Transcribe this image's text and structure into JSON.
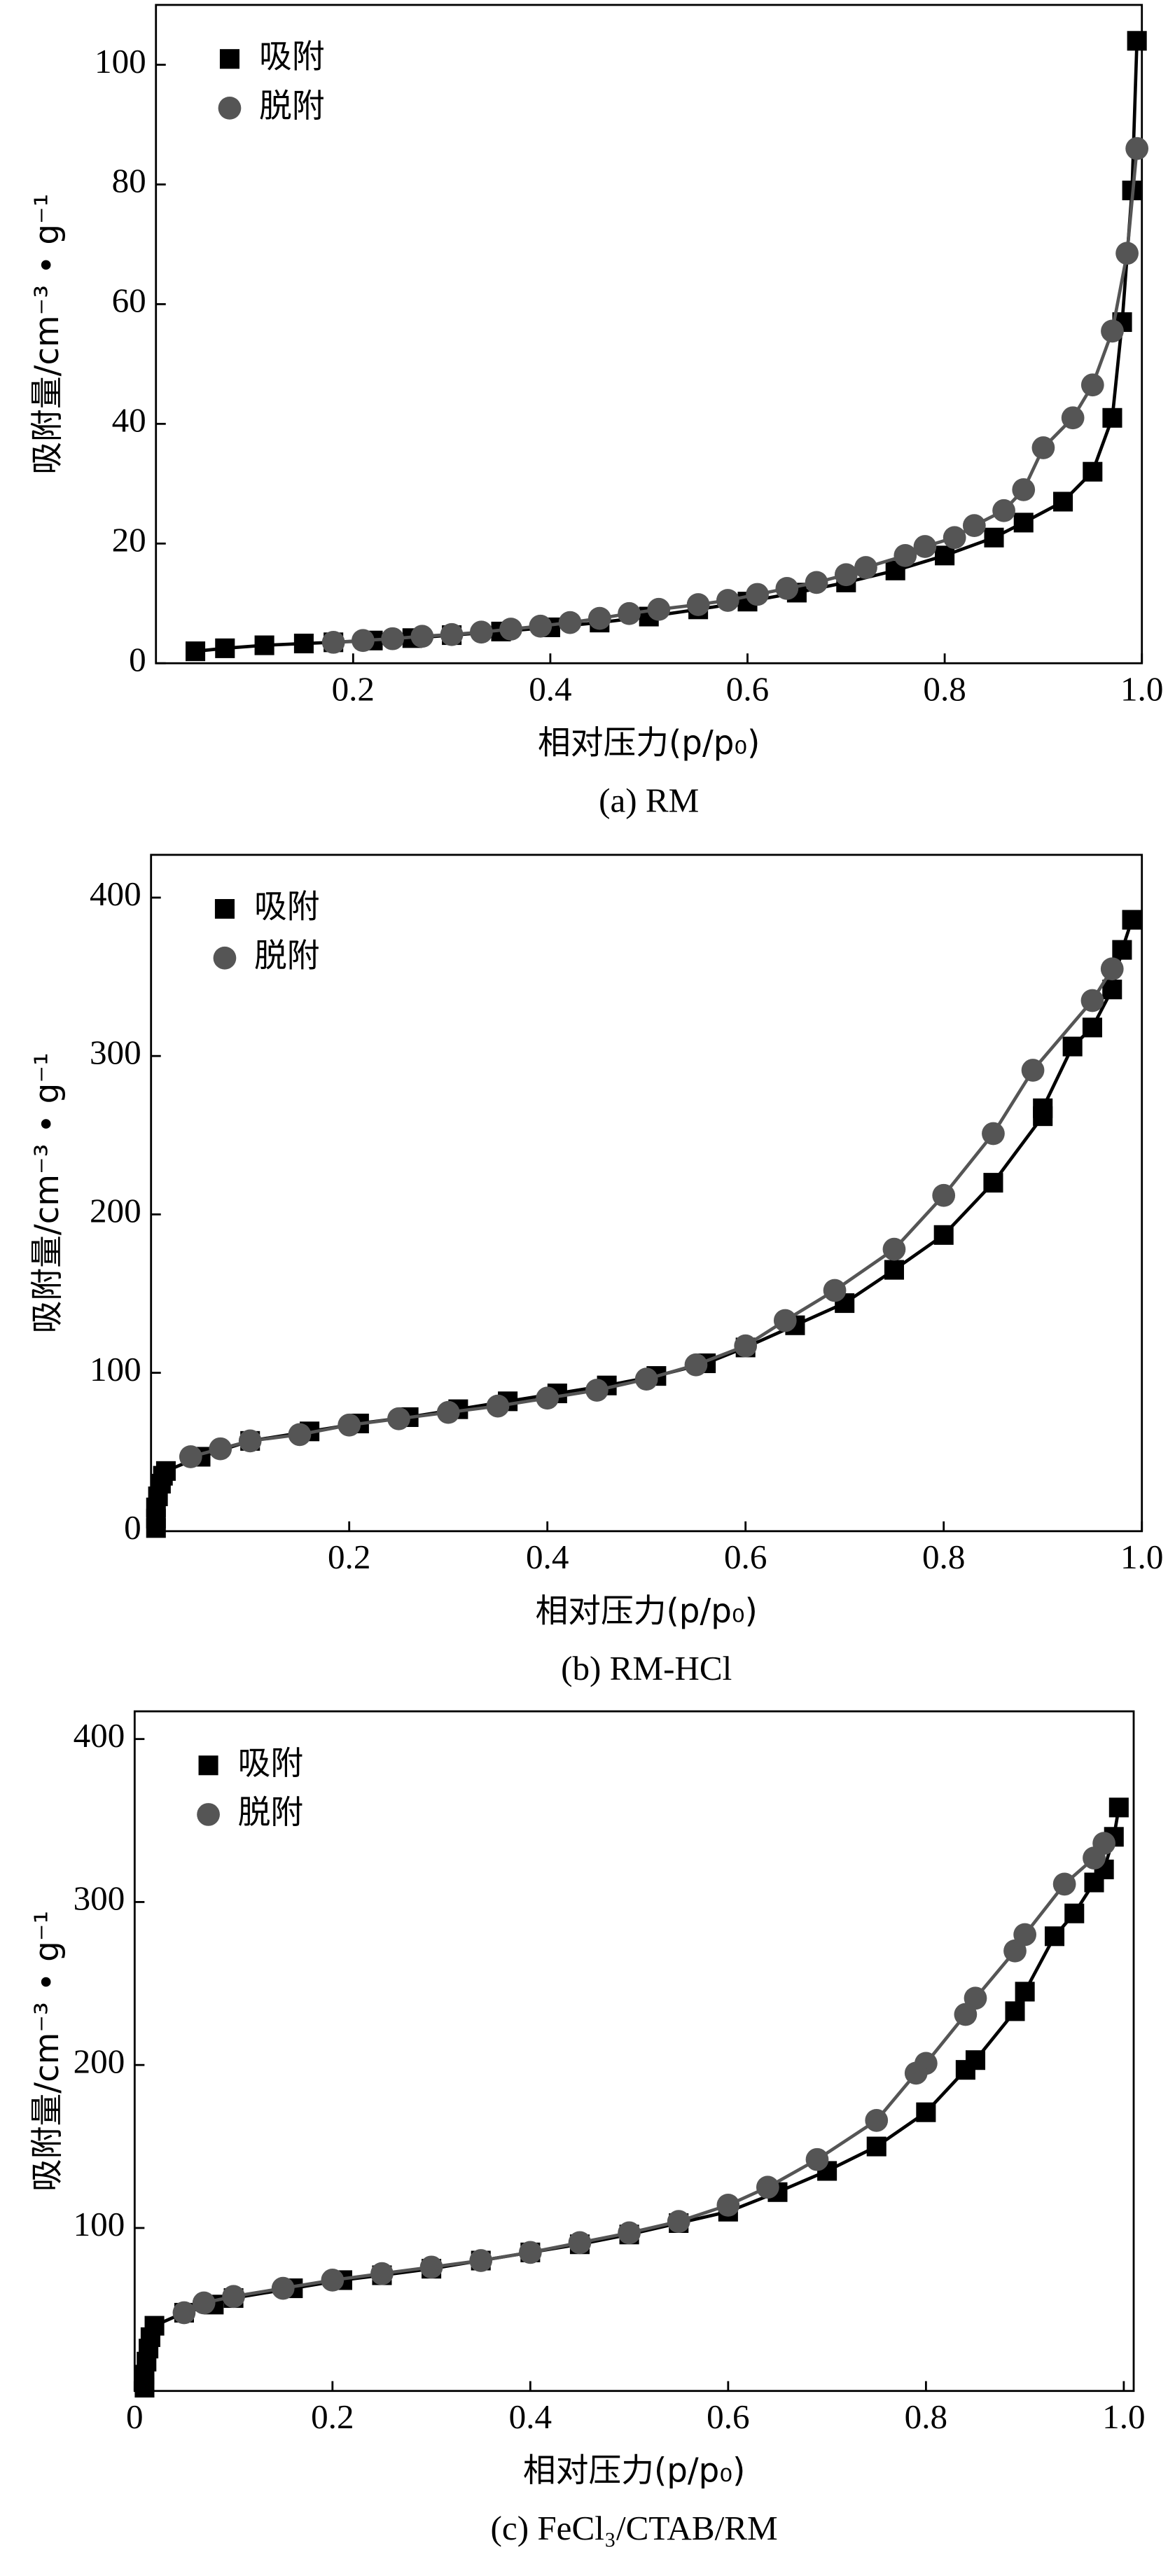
{
  "chart_data": [
    {
      "type": "line",
      "caption": "(a) RM",
      "x_label": "相对压力(p/p₀)",
      "y_label": "吸附量/cm⁻³ • g⁻¹",
      "xlim": [
        0,
        1.0
      ],
      "ylim": [
        0,
        110
      ],
      "xticks": [
        0.2,
        0.4,
        0.6,
        0.8,
        {
          "value": 1,
          "label": "1.0"
        }
      ],
      "yticks": [
        0,
        20,
        40,
        60,
        80,
        100
      ],
      "legend": "upper left",
      "series": [
        {
          "name": "吸附",
          "color": "#000000",
          "marker": "square",
          "x": [
            0.04,
            0.07,
            0.11,
            0.15,
            0.18,
            0.22,
            0.26,
            0.3,
            0.35,
            0.4,
            0.45,
            0.5,
            0.55,
            0.6,
            0.65,
            0.7,
            0.75,
            0.8,
            0.85,
            0.88,
            0.92,
            0.95,
            0.97,
            0.98,
            0.99,
            0.995
          ],
          "values": [
            2,
            2.5,
            3,
            3.3,
            3.5,
            3.8,
            4.2,
            4.7,
            5.3,
            6,
            6.8,
            7.8,
            9,
            10.3,
            11.8,
            13.5,
            15.5,
            18,
            21,
            23.5,
            27,
            32,
            41,
            57,
            79,
            104
          ]
        },
        {
          "name": "脱附",
          "color": "#555555",
          "marker": "circle",
          "x": [
            0.995,
            0.985,
            0.97,
            0.95,
            0.93,
            0.9,
            0.88,
            0.86,
            0.83,
            0.81,
            0.78,
            0.76,
            0.72,
            0.7,
            0.67,
            0.64,
            0.61,
            0.58,
            0.55,
            0.51,
            0.48,
            0.45,
            0.42,
            0.39,
            0.36,
            0.33,
            0.3,
            0.27,
            0.24,
            0.21,
            0.18
          ],
          "values": [
            86,
            68.5,
            55.5,
            46.5,
            41,
            36,
            29,
            25.5,
            23,
            21,
            19.5,
            18,
            16,
            14.8,
            13.5,
            12.5,
            11.5,
            10.5,
            9.8,
            9,
            8.3,
            7.5,
            6.8,
            6.2,
            5.7,
            5.2,
            4.8,
            4.5,
            4.1,
            3.8,
            3.5
          ]
        }
      ]
    },
    {
      "type": "line",
      "caption": "(b) RM-HCl",
      "x_label": "相对压力(p/p₀)",
      "y_label": "吸附量/cm⁻³ • g⁻¹",
      "xlim": [
        0,
        1.0
      ],
      "ylim": [
        0,
        427
      ],
      "xticks": [
        0.2,
        0.4,
        0.6,
        0.8,
        {
          "value": 1,
          "label": "1.0"
        }
      ],
      "yticks": [
        0,
        100,
        200,
        300,
        400
      ],
      "legend": "upper left",
      "series": [
        {
          "name": "吸附",
          "color": "#000000",
          "marker": "square",
          "x": [
            0.005,
            0.005,
            0.005,
            0.007,
            0.01,
            0.012,
            0.015,
            0.05,
            0.1,
            0.16,
            0.21,
            0.26,
            0.31,
            0.36,
            0.41,
            0.46,
            0.51,
            0.56,
            0.6,
            0.65,
            0.7,
            0.75,
            0.8,
            0.85,
            0.9,
            0.9,
            0.93,
            0.95,
            0.97,
            0.98,
            0.99
          ],
          "values": [
            2,
            8,
            15,
            22,
            30,
            35,
            38,
            47,
            57,
            63,
            68,
            72,
            77,
            82,
            87,
            92,
            98,
            106,
            116,
            130,
            144,
            165,
            187,
            220,
            262,
            267,
            306,
            318,
            342,
            367,
            386
          ]
        },
        {
          "name": "脱附",
          "color": "#555555",
          "marker": "circle",
          "x": [
            0.97,
            0.95,
            0.89,
            0.85,
            0.8,
            0.75,
            0.69,
            0.64,
            0.6,
            0.55,
            0.5,
            0.45,
            0.4,
            0.35,
            0.3,
            0.25,
            0.2,
            0.15,
            0.1,
            0.07,
            0.04
          ],
          "values": [
            355,
            335,
            291,
            251,
            212,
            178,
            152,
            133,
            117,
            105,
            96,
            89,
            84,
            79,
            75,
            71,
            67,
            61,
            57,
            52,
            47
          ]
        }
      ]
    },
    {
      "type": "line",
      "caption": "(c) FeCl₃/CTAB/RM",
      "x_label": "相对压力(p/p₀)",
      "y_label": "吸附量/cm⁻³ • g⁻¹",
      "xlim": [
        0,
        1.01
      ],
      "ylim": [
        0,
        417
      ],
      "xticks": [
        0,
        0.2,
        0.4,
        0.6,
        0.8,
        {
          "value": 1,
          "label": "1.0"
        }
      ],
      "yticks": [
        100,
        200,
        300,
        400
      ],
      "legend": "upper left",
      "series": [
        {
          "name": "吸附",
          "color": "#000000",
          "marker": "square",
          "x": [
            0.01,
            0.01,
            0.012,
            0.014,
            0.016,
            0.02,
            0.05,
            0.08,
            0.1,
            0.16,
            0.21,
            0.25,
            0.3,
            0.35,
            0.4,
            0.45,
            0.5,
            0.55,
            0.6,
            0.65,
            0.7,
            0.75,
            0.8,
            0.84,
            0.85,
            0.89,
            0.9,
            0.93,
            0.95,
            0.97,
            0.98,
            0.99,
            0.995
          ],
          "values": [
            2,
            10,
            18,
            26,
            33,
            40,
            48,
            53,
            57,
            63,
            68,
            71,
            75,
            80,
            85,
            90,
            96,
            103,
            110,
            122,
            135,
            150,
            171,
            197,
            203,
            233,
            245,
            279,
            293,
            312,
            320,
            340,
            358
          ]
        },
        {
          "name": "脱附",
          "color": "#555555",
          "marker": "circle",
          "x": [
            0.98,
            0.97,
            0.94,
            0.9,
            0.89,
            0.85,
            0.84,
            0.8,
            0.79,
            0.75,
            0.69,
            0.64,
            0.6,
            0.55,
            0.5,
            0.45,
            0.4,
            0.35,
            0.3,
            0.25,
            0.2,
            0.15,
            0.1,
            0.07,
            0.05
          ],
          "values": [
            336,
            327,
            311,
            280,
            270,
            241,
            231,
            201,
            195,
            166,
            142,
            125,
            114,
            104,
            97,
            91,
            85,
            80,
            76,
            72,
            68,
            63,
            58,
            54,
            48
          ]
        }
      ]
    }
  ]
}
